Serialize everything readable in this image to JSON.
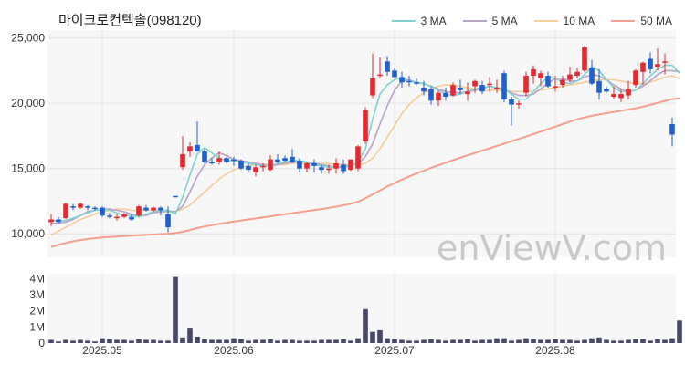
{
  "chart_data": {
    "type": "candlestick",
    "title": "마이크로컨텍솔(098120)",
    "watermark": "enViewV.com",
    "colors": {
      "up": "#e8272f",
      "down": "#1f5fcf",
      "volume": "#47486b",
      "ma3": "#7fd3cf",
      "ma5": "#b8a3c9",
      "ma10": "#f2cf9a",
      "ma50": "#f5a08e"
    },
    "legend": [
      {
        "label": "3 MA",
        "color": "#7fd3cf"
      },
      {
        "label": "5 MA",
        "color": "#b8a3c9"
      },
      {
        "label": "10 MA",
        "color": "#f2cf9a"
      },
      {
        "label": "50 MA",
        "color": "#f5a08e"
      }
    ],
    "price_axis": {
      "ylim": [
        8200,
        25600
      ],
      "ticks": [
        10000,
        15000,
        20000,
        25000
      ],
      "tick_labels": [
        "10,000",
        "15,000",
        "20,000",
        "25,000"
      ]
    },
    "volume_axis": {
      "ylim": [
        0,
        4300000
      ],
      "ticks": [
        0,
        1000000,
        2000000,
        3000000,
        4000000
      ],
      "tick_labels": [
        "0",
        "1M",
        "2M",
        "3M",
        "4M"
      ]
    },
    "x_ticks": [
      {
        "index": 7,
        "label": "2025.05"
      },
      {
        "index": 25,
        "label": "2025.06"
      },
      {
        "index": 47,
        "label": "2025.07"
      },
      {
        "index": 69,
        "label": "2025.08"
      }
    ],
    "candles": [
      [
        10900,
        11500,
        10600,
        11100
      ],
      [
        11100,
        11300,
        10800,
        10900
      ],
      [
        11200,
        12400,
        11100,
        12300
      ],
      [
        12100,
        12300,
        11800,
        12000
      ],
      [
        12000,
        12400,
        11900,
        12300
      ],
      [
        12100,
        12200,
        11800,
        12000
      ],
      [
        12000,
        12100,
        11800,
        11900
      ],
      [
        12000,
        12100,
        11300,
        11400
      ],
      [
        11400,
        11600,
        11200,
        11300
      ],
      [
        11200,
        11500,
        11000,
        11300
      ],
      [
        11300,
        11600,
        11200,
        11500
      ],
      [
        11300,
        11500,
        11000,
        11100
      ],
      [
        11400,
        12200,
        11300,
        12100
      ],
      [
        12000,
        12200,
        11700,
        11800
      ],
      [
        11800,
        12100,
        11700,
        12000
      ],
      [
        12000,
        12100,
        11400,
        11800
      ],
      [
        11500,
        12100,
        10100,
        10500
      ],
      [
        12900,
        12900,
        12800,
        12800
      ],
      [
        15100,
        17500,
        14900,
        16100
      ],
      [
        16300,
        17000,
        15900,
        16700
      ],
      [
        16800,
        18600,
        16300,
        16300
      ],
      [
        16300,
        16500,
        15400,
        15500
      ],
      [
        15500,
        15800,
        15300,
        15400
      ],
      [
        15500,
        16300,
        15300,
        15800
      ],
      [
        15800,
        15900,
        15400,
        15500
      ],
      [
        15700,
        15900,
        15200,
        15600
      ],
      [
        15600,
        15700,
        14900,
        15000
      ],
      [
        15200,
        15400,
        14800,
        14900
      ],
      [
        14700,
        15300,
        14400,
        15100
      ],
      [
        15100,
        15400,
        14800,
        15200
      ],
      [
        14900,
        16000,
        14800,
        15700
      ],
      [
        15700,
        16100,
        15400,
        15500
      ],
      [
        15800,
        16000,
        15500,
        15600
      ],
      [
        15900,
        16500,
        15400,
        15500
      ],
      [
        15600,
        15800,
        14700,
        15000
      ],
      [
        15000,
        15500,
        14700,
        15400
      ],
      [
        15400,
        15700,
        14700,
        15200
      ],
      [
        15100,
        15300,
        14600,
        14900
      ],
      [
        14900,
        15300,
        14600,
        15000
      ],
      [
        15000,
        15800,
        14600,
        15400
      ],
      [
        15300,
        15700,
        14600,
        14800
      ],
      [
        14900,
        15600,
        14800,
        15700
      ],
      [
        15000,
        16800,
        14800,
        16700
      ],
      [
        17100,
        19700,
        16900,
        19500
      ],
      [
        20600,
        23800,
        20400,
        21900
      ],
      [
        22100,
        23500,
        21900,
        22200
      ],
      [
        23200,
        23600,
        22100,
        22400
      ],
      [
        22500,
        22700,
        22000,
        22000
      ],
      [
        22000,
        22400,
        21200,
        21600
      ],
      [
        21700,
        22100,
        21300,
        21600
      ],
      [
        21600,
        21900,
        21400,
        21500
      ],
      [
        21200,
        21700,
        20600,
        20900
      ],
      [
        21100,
        21300,
        19900,
        20200
      ],
      [
        20200,
        21000,
        19800,
        20800
      ],
      [
        20800,
        21200,
        20200,
        20500
      ],
      [
        20600,
        21600,
        20500,
        21400
      ],
      [
        21200,
        21800,
        20700,
        21000
      ],
      [
        20700,
        21600,
        20200,
        20900
      ],
      [
        21300,
        21800,
        20800,
        21700
      ],
      [
        21400,
        21700,
        20700,
        20900
      ],
      [
        21400,
        22000,
        20900,
        21500
      ],
      [
        21200,
        21800,
        20800,
        21200
      ],
      [
        22300,
        22500,
        20100,
        20300
      ],
      [
        20300,
        20500,
        18300,
        19900
      ],
      [
        20000,
        20200,
        19600,
        20000
      ],
      [
        20800,
        22400,
        20500,
        22100
      ],
      [
        22100,
        22900,
        21500,
        22600
      ],
      [
        21900,
        22500,
        21300,
        22300
      ],
      [
        22100,
        22400,
        21200,
        21300
      ],
      [
        21300,
        22100,
        20900,
        21300
      ],
      [
        21400,
        22100,
        21200,
        21800
      ],
      [
        21800,
        22800,
        21600,
        22200
      ],
      [
        22100,
        22700,
        21900,
        22400
      ],
      [
        22500,
        24400,
        22400,
        24300
      ],
      [
        22700,
        23300,
        21400,
        21500
      ],
      [
        21700,
        22600,
        20300,
        20800
      ],
      [
        21100,
        21300,
        20800,
        20900
      ],
      [
        20500,
        21300,
        20300,
        20700
      ],
      [
        20400,
        21100,
        20100,
        20700
      ],
      [
        20600,
        21700,
        20300,
        21100
      ],
      [
        21400,
        22600,
        21200,
        22500
      ],
      [
        22400,
        23200,
        21400,
        23100
      ],
      [
        23400,
        23900,
        22300,
        22600
      ],
      [
        22800,
        24200,
        22500,
        23000
      ],
      [
        23200,
        23800,
        22200,
        23200
      ],
      [
        18400,
        18900,
        16700,
        17600
      ]
    ],
    "volumes": [
      200000,
      100000,
      200000,
      150000,
      200000,
      150000,
      100000,
      300000,
      250000,
      200000,
      200000,
      150000,
      250000,
      200000,
      200000,
      150000,
      150000,
      4100000,
      350000,
      900000,
      400000,
      250000,
      200000,
      200000,
      200000,
      300000,
      250000,
      150000,
      200000,
      200000,
      250000,
      150000,
      200000,
      200000,
      150000,
      150000,
      150000,
      200000,
      200000,
      200000,
      250000,
      150000,
      300000,
      2100000,
      700000,
      800000,
      300000,
      250000,
      200000,
      150000,
      150000,
      200000,
      250000,
      200000,
      150000,
      200000,
      200000,
      250000,
      150000,
      200000,
      200000,
      300000,
      300000,
      150000,
      200000,
      300000,
      250000,
      200000,
      200000,
      250000,
      200000,
      200000,
      150000,
      200000,
      300000,
      350000,
      200000,
      150000,
      150000,
      200000,
      250000,
      250000,
      150000,
      250000,
      200000,
      300000,
      1400000
    ],
    "ma3": [
      11000,
      11000,
      11000,
      11200,
      11400,
      11600,
      11800,
      11900,
      11800,
      11600,
      11400,
      11400,
      11300,
      11500,
      11700,
      11800,
      11800,
      11500,
      12800,
      14500,
      16100,
      16600,
      16200,
      15800,
      15600,
      15600,
      15500,
      15400,
      15300,
      15200,
      15200,
      15400,
      15500,
      15600,
      15600,
      15500,
      15300,
      15200,
      15100,
      15100,
      15200,
      15200,
      15500,
      16500,
      18800,
      20700,
      21400,
      21800,
      22000,
      21700,
      21600,
      21500,
      21300,
      21000,
      20700,
      20600,
      20700,
      20900,
      21100,
      21200,
      21300,
      21200,
      21100,
      20700,
      20300,
      20300,
      20900,
      21500,
      22000,
      21900,
      21600,
      21500,
      21700,
      22200,
      22800,
      22500,
      21800,
      21200,
      20900,
      20900,
      21000,
      21500,
      22100,
      22600,
      22900,
      22900,
      22300
    ],
    "ma5": [
      10800,
      10800,
      10900,
      11100,
      11400,
      11700,
      11800,
      11900,
      11900,
      11800,
      11700,
      11500,
      11400,
      11400,
      11600,
      11700,
      11700,
      11700,
      12100,
      13200,
      14400,
      15300,
      15800,
      16200,
      16000,
      15700,
      15600,
      15500,
      15400,
      15300,
      15200,
      15300,
      15400,
      15500,
      15500,
      15500,
      15400,
      15300,
      15200,
      15100,
      15100,
      15200,
      15400,
      15900,
      16900,
      18400,
      19800,
      21000,
      21700,
      21800,
      21600,
      21500,
      21300,
      21100,
      20900,
      20800,
      20800,
      20900,
      21000,
      21100,
      21300,
      21200,
      21100,
      20800,
      20600,
      20600,
      20700,
      21100,
      21500,
      21900,
      21900,
      21700,
      21700,
      22000,
      22200,
      22100,
      21800,
      21400,
      21100,
      20900,
      21000,
      21300,
      21700,
      22200,
      22500,
      22500,
      22400
    ],
    "ma10": [
      9900,
      10200,
      10500,
      10800,
      11100,
      11300,
      11500,
      11700,
      11800,
      11900,
      11900,
      11800,
      11800,
      11800,
      11800,
      11800,
      11800,
      11700,
      11900,
      12200,
      12700,
      13200,
      13700,
      14200,
      14600,
      14900,
      15100,
      15200,
      15300,
      15300,
      15300,
      15300,
      15300,
      15400,
      15400,
      15400,
      15400,
      15400,
      15400,
      15300,
      15300,
      15300,
      15300,
      15400,
      15800,
      16500,
      17400,
      18300,
      19200,
      19900,
      20400,
      20800,
      21100,
      21300,
      21400,
      21400,
      21300,
      21200,
      21100,
      21000,
      21000,
      21000,
      21000,
      20900,
      20900,
      20900,
      20900,
      21000,
      21100,
      21200,
      21300,
      21400,
      21500,
      21600,
      21700,
      21800,
      21800,
      21800,
      21700,
      21600,
      21500,
      21500,
      21600,
      21800,
      22000,
      22100,
      21900
    ],
    "ma50": [
      9000,
      9150,
      9300,
      9420,
      9520,
      9600,
      9660,
      9720,
      9760,
      9800,
      9830,
      9860,
      9890,
      9920,
      9950,
      9980,
      10010,
      10060,
      10160,
      10290,
      10440,
      10560,
      10660,
      10760,
      10850,
      10940,
      11020,
      11100,
      11180,
      11260,
      11340,
      11420,
      11500,
      11580,
      11660,
      11740,
      11820,
      11900,
      11990,
      12080,
      12180,
      12300,
      12460,
      12720,
      13020,
      13320,
      13620,
      13890,
      14150,
      14390,
      14620,
      14840,
      15050,
      15250,
      15450,
      15640,
      15830,
      16010,
      16190,
      16370,
      16550,
      16730,
      16910,
      17090,
      17270,
      17450,
      17640,
      17830,
      18020,
      18210,
      18400,
      18590,
      18770,
      18910,
      19040,
      19140,
      19240,
      19330,
      19420,
      19520,
      19620,
      19740,
      19880,
      20030,
      20180,
      20310,
      20380
    ]
  }
}
